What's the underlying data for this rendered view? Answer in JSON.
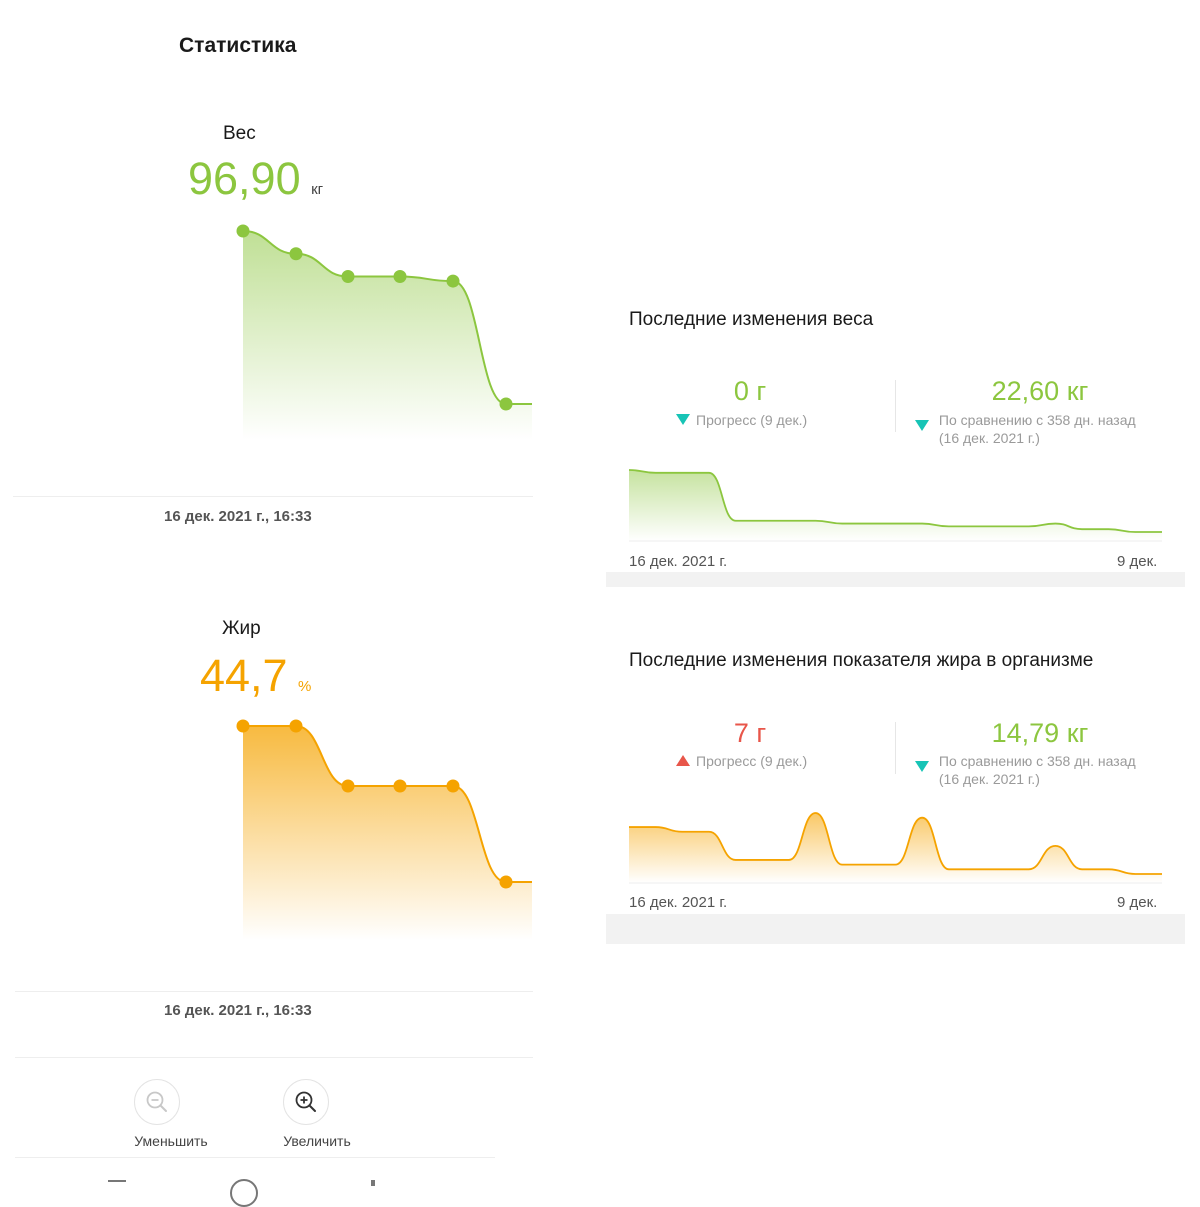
{
  "page": {
    "title": "Статистика"
  },
  "weight": {
    "label": "Вес",
    "value": "96,90",
    "unit": "кг",
    "date": "16 дек. 2021 г., 16:33",
    "points": [
      97.0,
      96.5,
      96.0,
      96.0,
      95.9,
      93.2
    ]
  },
  "fat": {
    "label": "Жир",
    "value": "44,7",
    "unit": "%",
    "date": "16 дек. 2021 г., 16:33",
    "points": [
      47.0,
      47.0,
      45.0,
      45.0,
      45.0,
      41.8
    ]
  },
  "zoom": {
    "out_label": "Уменьшить",
    "in_label": "Увеличить"
  },
  "weight_changes": {
    "title": "Последние изменения веса",
    "progress_value": "0 г",
    "progress_desc": "Прогресс (9 дек.)",
    "compare_value": "22,60 кг",
    "compare_desc_line1": "По сравнению с 358 дн. назад",
    "compare_desc_line2": "(16 дек. 2021 г.)",
    "start_date": "16 дек. 2021 г.",
    "end_date": "9 дек.",
    "trend": [
      119,
      118,
      118,
      118,
      101,
      101,
      101,
      101,
      100,
      100,
      100,
      100,
      99,
      99,
      99,
      99,
      100,
      98,
      98,
      97,
      97
    ]
  },
  "fat_changes": {
    "title": "Последние изменения показателя жира в организме",
    "progress_value": "7 г",
    "progress_desc": "Прогресс (9 дек.)",
    "compare_value": "14,79 кг",
    "compare_desc_line1": "По сравнению с 358 дн. назад",
    "compare_desc_line2": "(16 дек. 2021 г.)",
    "start_date": "16 дек. 2021 г.",
    "end_date": "9 дек.",
    "trend": [
      50,
      50,
      49,
      49,
      43,
      43,
      43,
      53,
      42,
      42,
      42,
      52,
      41,
      41,
      41,
      41,
      46,
      41,
      41,
      40,
      40
    ]
  },
  "colors": {
    "green": "#8cc63f",
    "orange": "#f5a300",
    "teal": "#17c4b6",
    "red": "#e8564a"
  }
}
